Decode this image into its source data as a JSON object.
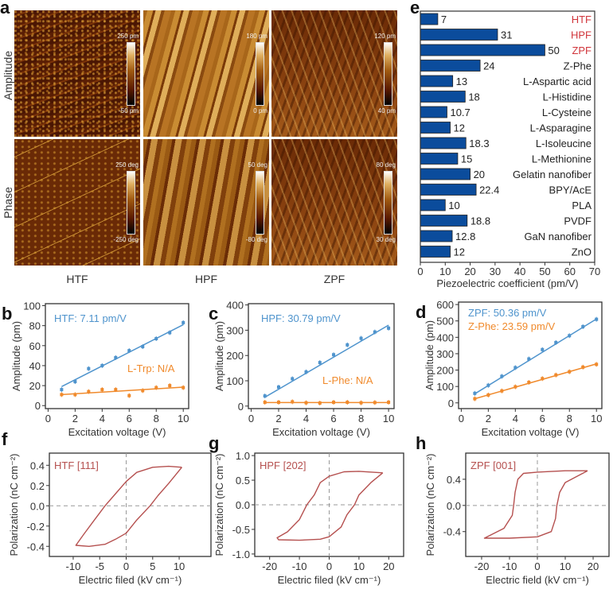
{
  "panel_letters": {
    "a": "a",
    "b": "b",
    "c": "c",
    "d": "d",
    "e": "e",
    "f": "f",
    "g": "g",
    "h": "h"
  },
  "afm": {
    "row_labels": [
      "Amplitude",
      "Phase"
    ],
    "column_labels": [
      "HTF",
      "HPF",
      "ZPF"
    ],
    "colorbars": {
      "amplitude": [
        {
          "max": "250 pm",
          "min": "-50 pm"
        },
        {
          "max": "180 pm",
          "min": "0 pm"
        },
        {
          "max": "120 pm",
          "min": "40 pm"
        }
      ],
      "phase": [
        {
          "max": "250 deg",
          "min": "-250 deg"
        },
        {
          "max": "50 deg",
          "min": "-80 deg"
        },
        {
          "max": "80 deg",
          "min": "30 deg"
        }
      ]
    }
  },
  "chart_data": [
    {
      "id": "e",
      "type": "bar",
      "orientation": "horizontal",
      "categories": [
        "HTF",
        "HPF",
        "ZPF",
        "Z-Phe",
        "L-Aspartic acid",
        "L-Histidine",
        "L-Cysteine",
        "L-Asparagine",
        "L-Isoleucine",
        "L-Methionine",
        "Gelatin nanofiber",
        "BPY/AcE",
        "PLA",
        "PVDF",
        "GaN nanofiber",
        "ZnO"
      ],
      "values": [
        7,
        31,
        50,
        24,
        13,
        18,
        10.7,
        12,
        18.3,
        15,
        20,
        22.4,
        10,
        18.8,
        12.8,
        12
      ],
      "value_labels": [
        "7",
        "31",
        "50",
        "24",
        "13",
        "18",
        "10.7",
        "12",
        "18.3",
        "15",
        "20",
        "22.4",
        "10",
        "18.8",
        "12.8",
        "12"
      ],
      "highlight_categories": [
        "HTF",
        "HPF",
        "ZPF"
      ],
      "xlabel": "Piezoelectric coefficient (pm/V)",
      "xlim": [
        0,
        70
      ],
      "xticks": [
        0,
        10,
        20,
        30,
        40,
        50,
        60,
        70
      ],
      "colors": {
        "bar": "#0b4c9c",
        "highlight_text": "#d0343a",
        "text": "#222222"
      }
    },
    {
      "id": "b",
      "type": "scatter",
      "x": [
        1,
        2,
        3,
        4,
        5,
        6,
        7,
        8,
        9,
        10
      ],
      "series": [
        {
          "name": "HTF: 7.11 pm/V",
          "values": [
            16,
            24,
            37,
            40,
            48,
            55,
            59,
            67,
            73,
            83
          ],
          "fit": [
            19,
            81
          ],
          "color": "#4f94cd"
        },
        {
          "name": "L-Trp: N/A",
          "values": [
            11,
            11,
            14,
            16,
            16,
            10,
            15,
            18,
            20,
            18
          ],
          "fit": [
            11,
            18.5
          ],
          "color": "#f08a2c"
        }
      ],
      "xlabel": "Excitation voltage (V)",
      "ylabel": "Amplitude (pm)",
      "xlim": [
        -0.2,
        10.4
      ],
      "ylim": [
        -3,
        102
      ],
      "xticks": [
        0,
        2,
        4,
        6,
        8,
        10
      ],
      "yticks": [
        0,
        20,
        40,
        60,
        80,
        100
      ]
    },
    {
      "id": "c",
      "type": "scatter",
      "x": [
        1,
        2,
        3,
        4,
        5,
        6,
        7,
        8,
        9,
        10
      ],
      "series": [
        {
          "name": "HPF: 30.79 pm/V",
          "values": [
            40,
            75,
            108,
            135,
            172,
            203,
            242,
            268,
            293,
            308
          ],
          "fit": [
            35,
            320
          ],
          "color": "#4f94cd"
        },
        {
          "name": "L-Phe: N/A",
          "values": [
            15,
            15,
            17,
            13,
            12,
            15,
            15,
            13,
            14,
            15
          ],
          "fit": [
            14,
            14
          ],
          "color": "#f08a2c"
        }
      ],
      "xlabel": "Excitation voltage (V)",
      "ylabel": "Amplitude (pm)",
      "xlim": [
        -0.2,
        10.4
      ],
      "ylim": [
        -10,
        405
      ],
      "xticks": [
        0,
        2,
        4,
        6,
        8,
        10
      ],
      "yticks": [
        0,
        100,
        200,
        300,
        400
      ]
    },
    {
      "id": "d",
      "type": "scatter",
      "x": [
        1,
        2,
        3,
        4,
        5,
        6,
        7,
        8,
        9,
        10
      ],
      "series": [
        {
          "name": "ZPF: 50.36 pm/V",
          "values": [
            58,
            107,
            162,
            215,
            268,
            325,
            368,
            410,
            465,
            510
          ],
          "fit": [
            55,
            512
          ],
          "color": "#4f94cd"
        },
        {
          "name": "Z-Phe: 23.59 pm/V",
          "values": [
            25,
            48,
            73,
            98,
            125,
            148,
            170,
            190,
            218,
            235
          ],
          "fit": [
            25,
            238
          ],
          "color": "#f08a2c"
        }
      ],
      "xlabel": "Excitation voltage (V)",
      "ylabel": "Amplitude (pm)",
      "xlim": [
        -0.2,
        10.4
      ],
      "ylim": [
        -35,
        615
      ],
      "xticks": [
        0,
        2,
        4,
        6,
        8,
        10
      ],
      "yticks": [
        0,
        100,
        200,
        300,
        400,
        500,
        600
      ]
    },
    {
      "id": "f",
      "type": "line",
      "label": "HTF [111]",
      "color": "#b5504f",
      "x": [
        10.5,
        8,
        5,
        2,
        0,
        -2,
        -4,
        -6,
        -8,
        -9.5,
        -7,
        -4,
        -2,
        0,
        2,
        4.5,
        6,
        8,
        10.5
      ],
      "y": [
        0.38,
        0.39,
        0.38,
        0.33,
        0.24,
        0.12,
        0,
        -0.14,
        -0.28,
        -0.39,
        -0.4,
        -0.38,
        -0.33,
        -0.27,
        -0.14,
        0,
        0.1,
        0.22,
        0.38
      ],
      "xlabel": "Electric filed (kV cm⁻¹)",
      "ylabel": "Polarization (nC cm⁻²)",
      "xlim": [
        -14.5,
        16
      ],
      "ylim": [
        -0.5,
        0.52
      ],
      "xticks": [
        -10,
        -5,
        0,
        5,
        10
      ],
      "yticks": [
        -0.4,
        -0.2,
        0.0,
        0.2,
        0.4
      ],
      "ytick_labels": [
        "-0.4",
        "-0.2",
        "0.0",
        "0.2",
        "0.4"
      ]
    },
    {
      "id": "g",
      "type": "line",
      "label": "HPF [202]",
      "color": "#b5504f",
      "x": [
        18,
        10,
        5,
        0,
        -3,
        -5,
        -7.5,
        -10,
        -14,
        -17.5,
        -17,
        -10,
        -3,
        0,
        4,
        6,
        8.5,
        10,
        14,
        18
      ],
      "y": [
        0.65,
        0.68,
        0.67,
        0.58,
        0.45,
        0.2,
        0,
        -0.3,
        -0.55,
        -0.67,
        -0.71,
        -0.72,
        -0.7,
        -0.65,
        -0.45,
        -0.2,
        0,
        0.2,
        0.45,
        0.65
      ],
      "xlabel": "Electric filed (kV cm⁻¹)",
      "ylabel": "Polarization (nC cm⁻²)",
      "xlim": [
        -25,
        25
      ],
      "ylim": [
        -1.05,
        1.05
      ],
      "xticks": [
        -20,
        -10,
        0,
        10,
        20
      ],
      "yticks": [
        -1,
        -0.5,
        0,
        0.5,
        1
      ],
      "ytick_labels": [
        "-1.0",
        "-0.5",
        "0.0",
        "0.5",
        "1.0"
      ]
    },
    {
      "id": "h",
      "type": "line",
      "label": "ZPF [001]",
      "color": "#b5504f",
      "x": [
        18,
        10,
        0,
        -5,
        -7,
        -8,
        -8.5,
        -9,
        -12,
        -19,
        -10,
        0,
        5,
        6.5,
        7,
        8,
        10,
        18
      ],
      "y": [
        0.53,
        0.53,
        0.51,
        0.49,
        0.4,
        0.2,
        0,
        -0.15,
        -0.35,
        -0.5,
        -0.5,
        -0.48,
        -0.4,
        -0.2,
        0,
        0.2,
        0.35,
        0.53
      ],
      "xlabel": "Electric field (kV cm⁻¹)",
      "ylabel": "Polarization (nC cm⁻²)",
      "xlim": [
        -25.7,
        25.7
      ],
      "ylim": [
        -0.78,
        0.8
      ],
      "xticks": [
        -20,
        -10,
        0,
        10,
        20
      ],
      "yticks": [
        -0.4,
        0,
        0.4
      ],
      "ytick_labels": [
        "-0.4",
        "0.0",
        "0.4"
      ]
    }
  ]
}
